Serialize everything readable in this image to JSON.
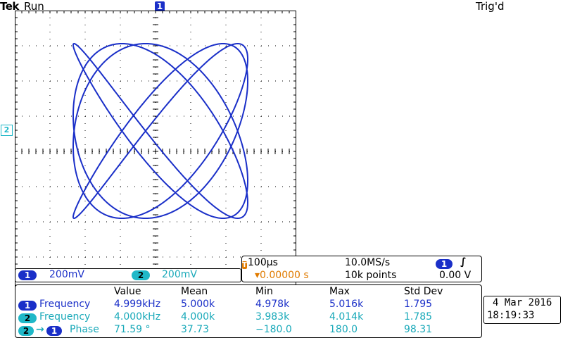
{
  "header": {
    "brand": "Tek",
    "status": "Run",
    "trigger_state": "Trig'd",
    "ch1_marker": "1",
    "ch2_marker": "2"
  },
  "channels": {
    "ch1": {
      "badge": "1",
      "scale": "200mV",
      "color": "#1a2fc8"
    },
    "ch2": {
      "badge": "2",
      "scale": "200mV",
      "color": "#1fb8c8"
    }
  },
  "timebase": {
    "time_per_div": "100µs",
    "sample_rate": "10.0MS/s",
    "trigger_position": "▾0.00000 s",
    "record_length": "10k points",
    "trigger_source": "1",
    "trigger_slope": "∫",
    "trigger_level": "0.00 V",
    "trigger_marker": "T"
  },
  "measurements": {
    "headers": [
      "Value",
      "Mean",
      "Min",
      "Max",
      "Std Dev"
    ],
    "rows": [
      {
        "badge": "1",
        "label": "Frequency",
        "values": [
          "4.999kHz",
          "5.000k",
          "4.978k",
          "5.016k",
          "1.795"
        ]
      },
      {
        "badge": "2",
        "label": "Frequency",
        "values": [
          "4.000kHz",
          "4.000k",
          "3.983k",
          "4.014k",
          "1.785"
        ]
      },
      {
        "badge_from": "2",
        "arrow": "→",
        "badge_to": "1",
        "label": "Phase",
        "values": [
          "71.59 °",
          "37.73",
          "−180.0",
          "180.0",
          "98.31"
        ]
      }
    ]
  },
  "datetime": {
    "date": "4 Mar 2016",
    "time": "18:19:33"
  },
  "display": {
    "mode": "XY",
    "trace_color": "#1a2fc8",
    "lissajous": {
      "x_freq_khz": 4.0,
      "y_freq_khz": 5.0,
      "amplitude_div": 3.1
    }
  }
}
